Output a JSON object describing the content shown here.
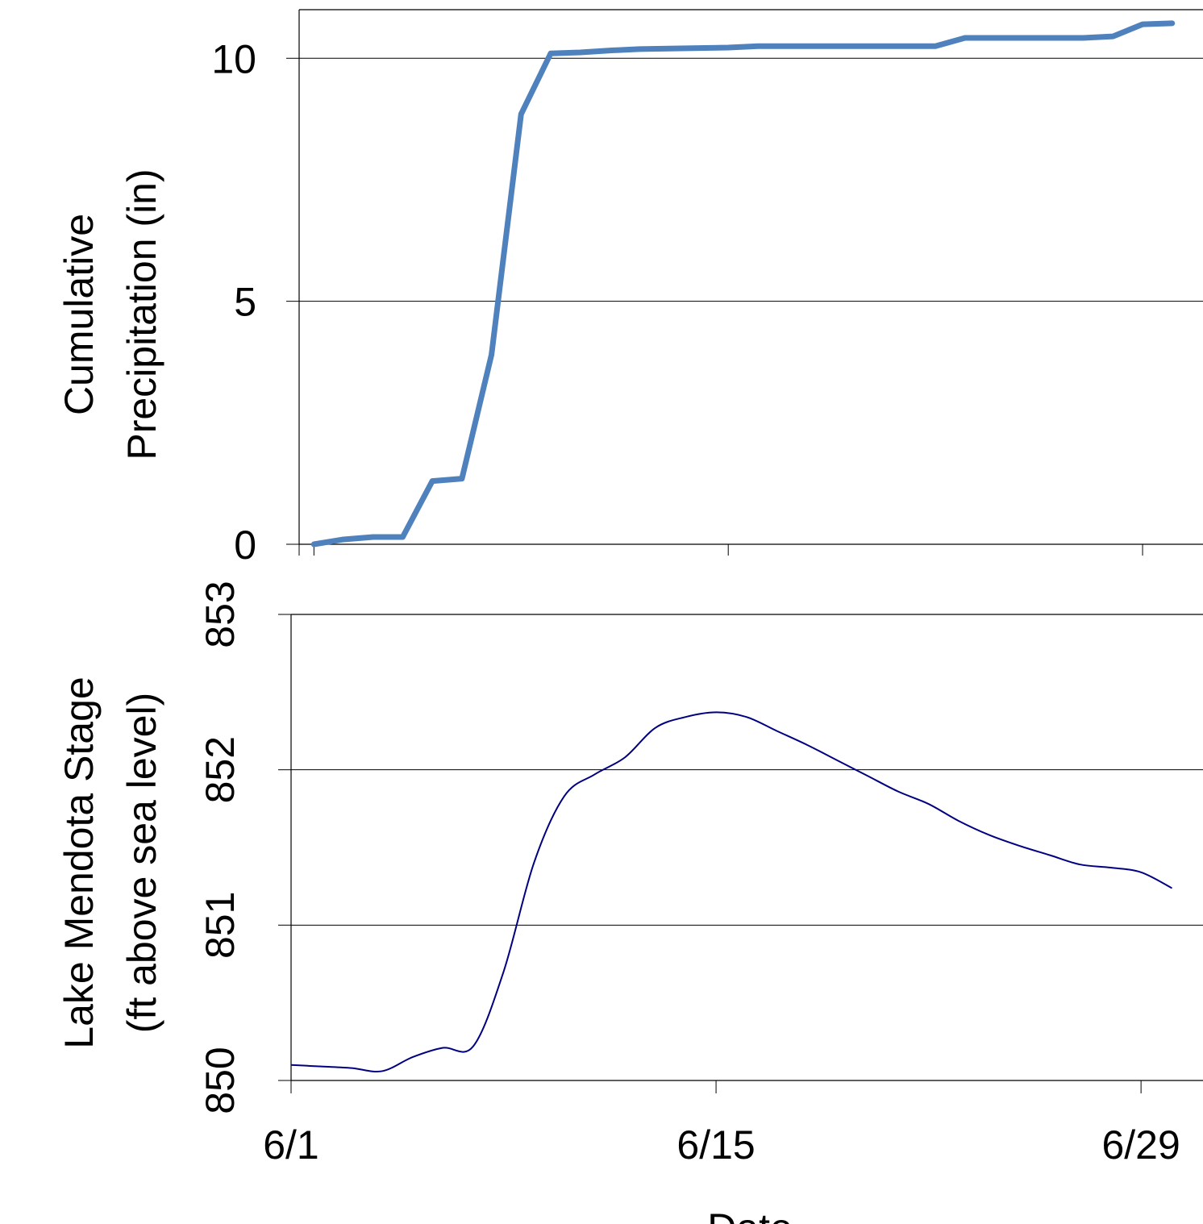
{
  "chart_data": [
    {
      "type": "line",
      "title": "",
      "xlabel": "",
      "ylabel": [
        "Cumulative",
        "Precipitation (in)"
      ],
      "xlim": [
        "5/31 12:00",
        "7/1 01:00"
      ],
      "ylim": [
        0,
        11
      ],
      "yticks": [
        0,
        5,
        10
      ],
      "ytick_labels": [
        "0",
        "5",
        "10"
      ],
      "xticks": [
        "6/1",
        "6/15",
        "6/29"
      ],
      "grid": {
        "y": true,
        "x": false
      },
      "series": [
        {
          "color": "#4f81bd",
          "x": [
            "6/1",
            "6/2",
            "6/3",
            "6/4",
            "6/5",
            "6/6",
            "6/7",
            "6/8",
            "6/9",
            "6/10",
            "6/11",
            "6/12",
            "6/13",
            "6/14",
            "6/15",
            "6/16",
            "6/17",
            "6/18",
            "6/19",
            "6/20",
            "6/21",
            "6/22",
            "6/23",
            "6/24",
            "6/25",
            "6/26",
            "6/27",
            "6/28",
            "6/29",
            "6/30"
          ],
          "values": [
            0.0,
            0.1,
            0.15,
            0.15,
            1.3,
            1.35,
            3.9,
            8.85,
            10.1,
            10.12,
            10.16,
            10.19,
            10.2,
            10.21,
            10.22,
            10.25,
            10.25,
            10.25,
            10.25,
            10.25,
            10.25,
            10.25,
            10.42,
            10.42,
            10.42,
            10.42,
            10.42,
            10.45,
            10.7,
            10.72
          ]
        }
      ]
    },
    {
      "type": "line",
      "title": "",
      "xlabel": "Date",
      "ylabel": [
        "Lake Mendota Stage",
        "(ft above sea level)"
      ],
      "xlim": [
        "6/1",
        "7/1 01:00"
      ],
      "ylim": [
        850,
        853
      ],
      "yticks": [
        850,
        851,
        852,
        853
      ],
      "ytick_labels": [
        "850",
        "851",
        "852",
        "853"
      ],
      "xticks": [
        "6/1",
        "6/15",
        "6/29"
      ],
      "xtick_labels": [
        "6/1",
        "6/15",
        "6/29"
      ],
      "grid": {
        "y": true,
        "x": false
      },
      "series": [
        {
          "color": "#000080",
          "x": [
            "6/1",
            "6/2",
            "6/3",
            "6/4",
            "6/5",
            "6/6",
            "6/7",
            "6/8",
            "6/9",
            "6/10",
            "6/11",
            "6/12",
            "6/13",
            "6/14",
            "6/15",
            "6/16",
            "6/17",
            "6/18",
            "6/19",
            "6/20",
            "6/21",
            "6/22",
            "6/23",
            "6/24",
            "6/25",
            "6/26",
            "6/27",
            "6/28",
            "6/29",
            "6/30"
          ],
          "values": [
            850.1,
            850.09,
            850.08,
            850.06,
            850.15,
            850.21,
            850.22,
            850.7,
            851.4,
            851.83,
            851.97,
            852.08,
            852.27,
            852.34,
            852.37,
            852.34,
            852.25,
            852.16,
            852.06,
            851.96,
            851.86,
            851.78,
            851.67,
            851.58,
            851.51,
            851.45,
            851.39,
            851.37,
            851.34,
            851.24
          ]
        }
      ]
    }
  ]
}
